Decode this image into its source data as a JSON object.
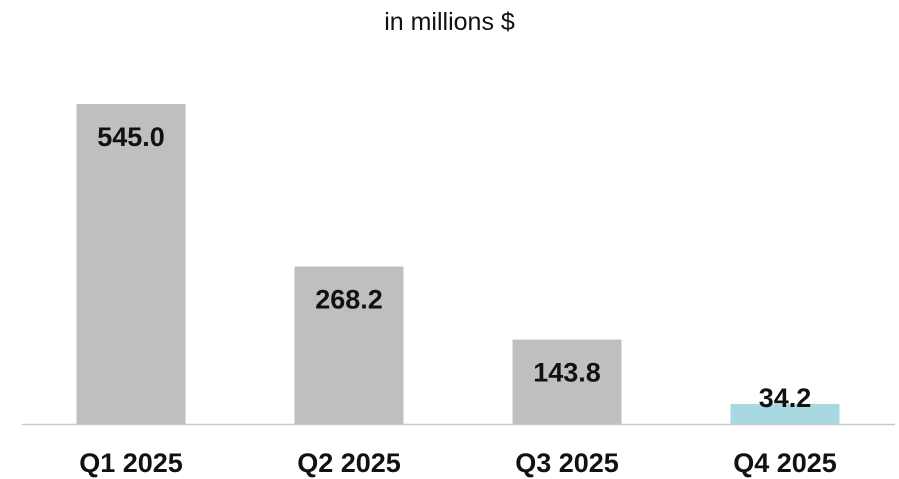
{
  "chart_data": {
    "type": "bar",
    "subtitle": "in millions $",
    "categories": [
      "Q1 2025",
      "Q2 2025",
      "Q3 2025",
      "Q4 2025"
    ],
    "values": [
      545.0,
      268.2,
      143.8,
      34.2
    ],
    "value_labels": [
      "545.0",
      "268.2",
      "143.8",
      "34.2"
    ],
    "bar_colors": [
      "#c0bfbd",
      "#c0bfbd",
      "#c0bfbd",
      "#a8d8e0"
    ],
    "baseline_color": "#c8c8c8",
    "ylim": [
      0,
      545
    ],
    "grid": false,
    "legend": "none"
  }
}
